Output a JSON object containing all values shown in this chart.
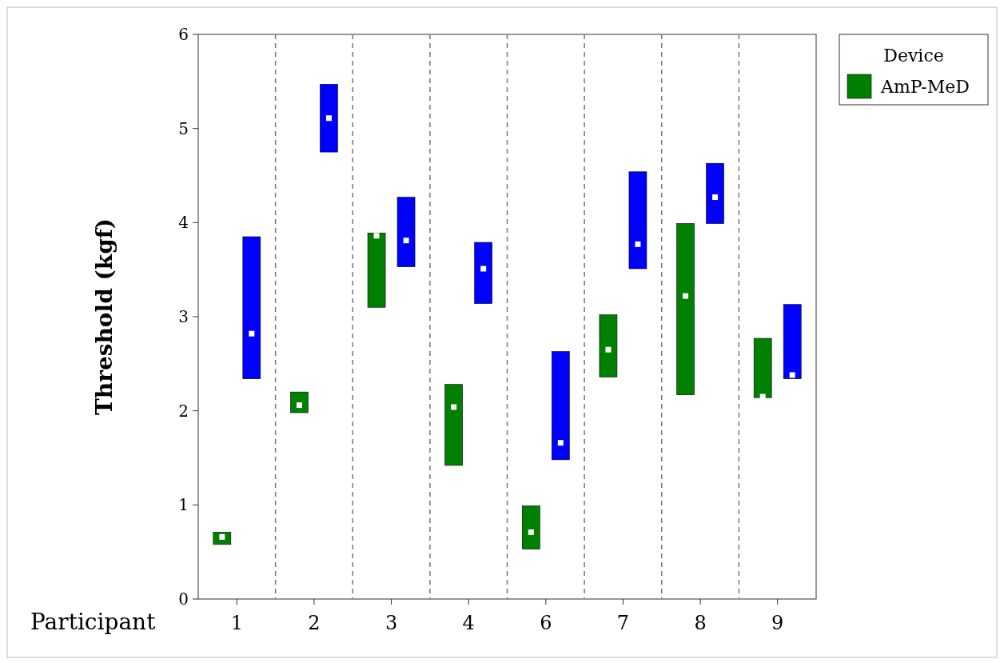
{
  "chart_data": {
    "type": "bar",
    "xlabel": "Participant",
    "ylabel": "Threshold (kgf)",
    "legend_title": "Device",
    "legend": "top right",
    "marker": "square",
    "categories": [
      "1",
      "2",
      "3",
      "4",
      "6",
      "7",
      "8",
      "9"
    ],
    "ylim": [
      0,
      6
    ],
    "yticks": [
      0,
      1,
      2,
      3,
      4,
      5,
      6
    ],
    "series": [
      {
        "name": "AmP-MeD",
        "color": "#008000",
        "base": [
          0.58,
          1.98,
          3.1,
          1.42,
          0.53,
          2.36,
          2.17,
          2.14
        ],
        "values": [
          0.13,
          0.22,
          0.79,
          0.86,
          0.46,
          0.66,
          1.82,
          0.63
        ]
      },
      {
        "color": "#0000ff",
        "base": [
          2.34,
          4.75,
          3.53,
          3.14,
          1.48,
          3.51,
          3.99,
          2.34
        ],
        "values": [
          1.51,
          0.72,
          0.74,
          0.65,
          1.15,
          1.03,
          0.64,
          0.79
        ]
      },
      {
        "type": "scatter",
        "color": "#ffffff",
        "x": [
          "1",
          "2",
          "3",
          "4",
          "6",
          "7",
          "8",
          "9"
        ],
        "values": [
          0.66,
          2.06,
          3.86,
          2.04,
          0.71,
          2.65,
          3.22,
          2.15
        ]
      },
      {
        "type": "scatter",
        "color": "#ffffff",
        "x": [
          "1",
          "2",
          "3",
          "4",
          "6",
          "7",
          "8",
          "9"
        ],
        "values": [
          2.82,
          5.11,
          3.81,
          3.51,
          1.66,
          3.77,
          4.27,
          2.38
        ]
      }
    ]
  }
}
